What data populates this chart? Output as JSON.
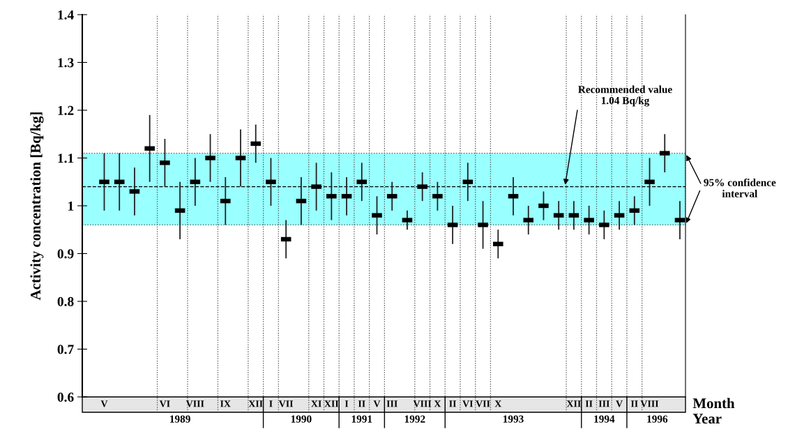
{
  "chart_data": {
    "type": "scatter",
    "ylabel": "Activity concentration [Bq/kg]",
    "xlabel": "Month",
    "categories": [
      "V",
      null,
      null,
      null,
      "VI",
      null,
      "VIII",
      null,
      "IX",
      null,
      "XII",
      "I",
      "VII",
      null,
      "XI",
      "XII",
      "I",
      "II",
      "V",
      "III",
      null,
      "VIII",
      "X",
      "II",
      "VI",
      "VII",
      "X",
      null,
      null,
      null,
      null,
      "XII",
      "II",
      "III",
      "V",
      "II",
      "VIII",
      null,
      null
    ],
    "series": [
      {
        "color": "#000000",
        "values": [
          1.05,
          1.05,
          1.03,
          1.12,
          1.09,
          0.99,
          1.05,
          1.1,
          1.01,
          1.1,
          1.13,
          1.05,
          0.93,
          1.01,
          1.04,
          1.02,
          1.02,
          1.05,
          0.98,
          1.02,
          0.97,
          1.04,
          1.02,
          0.96,
          1.05,
          0.96,
          0.92,
          1.02,
          0.97,
          1.0,
          0.98,
          0.98,
          0.97,
          0.96,
          0.98,
          0.99,
          1.05,
          1.11,
          0.97
        ],
        "errors": [
          [
            0.99,
            1.11
          ],
          [
            0.99,
            1.11
          ],
          [
            0.98,
            1.08
          ],
          [
            1.05,
            1.19
          ],
          [
            1.04,
            1.14
          ],
          [
            0.93,
            1.05
          ],
          [
            1.0,
            1.1
          ],
          [
            1.05,
            1.15
          ],
          [
            0.96,
            1.06
          ],
          [
            1.04,
            1.16
          ],
          [
            1.09,
            1.17
          ],
          [
            1.0,
            1.1
          ],
          [
            0.89,
            0.97
          ],
          [
            0.96,
            1.06
          ],
          [
            0.99,
            1.09
          ],
          [
            0.97,
            1.07
          ],
          [
            0.98,
            1.06
          ],
          [
            1.01,
            1.09
          ],
          [
            0.94,
            1.02
          ],
          [
            0.99,
            1.05
          ],
          [
            0.95,
            0.99
          ],
          [
            1.01,
            1.07
          ],
          [
            0.99,
            1.05
          ],
          [
            0.92,
            1.0
          ],
          [
            1.01,
            1.09
          ],
          [
            0.91,
            1.01
          ],
          [
            0.89,
            0.95
          ],
          [
            0.98,
            1.06
          ],
          [
            0.94,
            1.0
          ],
          [
            0.97,
            1.03
          ],
          [
            0.95,
            1.01
          ],
          [
            0.95,
            1.01
          ],
          [
            0.94,
            1.0
          ],
          [
            0.93,
            0.99
          ],
          [
            0.95,
            1.01
          ],
          [
            0.96,
            1.02
          ],
          [
            1.0,
            1.1
          ],
          [
            1.07,
            1.15
          ],
          [
            0.93,
            1.01
          ]
        ]
      }
    ],
    "ylim": [
      0.6,
      1.4
    ],
    "yticks": [
      0.6,
      0.7,
      0.8,
      0.9,
      1,
      1.1,
      1.2,
      1.3,
      1.4
    ],
    "ref_lines": [
      {
        "axis": "y",
        "value": 1.04,
        "label": "Recommended value\n1.04 Bq/kg",
        "color": "#000000",
        "line_style": "dashed"
      }
    ],
    "bands": [
      {
        "axis": "y",
        "from": 0.96,
        "to": 1.11,
        "label": "95% confidence\ninterval",
        "color": "#99ffff"
      }
    ],
    "annotations": [
      "1989",
      "1990",
      "1991",
      "1992",
      "1993",
      "1994",
      "1996",
      "Year"
    ],
    "grid": "x"
  }
}
